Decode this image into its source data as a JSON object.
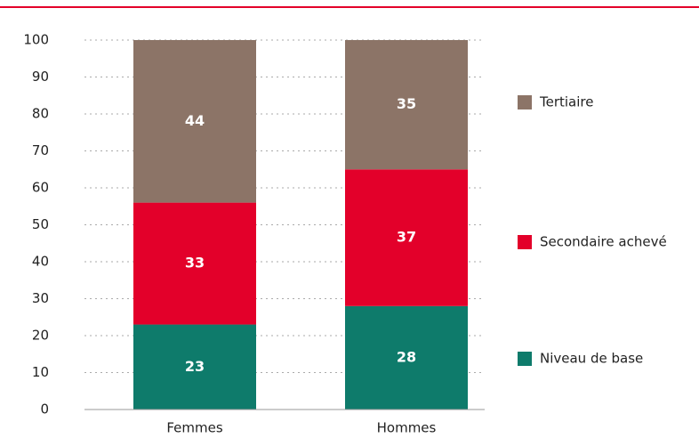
{
  "chart_data": {
    "type": "stacked_bar",
    "categories": [
      "Femmes",
      "Hommes"
    ],
    "series": [
      {
        "name": "Niveau de base",
        "color": "#0e7b6b",
        "values": [
          23,
          28
        ]
      },
      {
        "name": "Secondaire achevé",
        "color": "#e3002a",
        "values": [
          33,
          37
        ]
      },
      {
        "name": "Tertiaire",
        "color": "#8c7467",
        "values": [
          44,
          35
        ]
      }
    ],
    "ylim": [
      0,
      100
    ],
    "yticks": [
      0,
      10,
      20,
      30,
      40,
      50,
      60,
      70,
      80,
      90,
      100
    ],
    "grid": true
  }
}
